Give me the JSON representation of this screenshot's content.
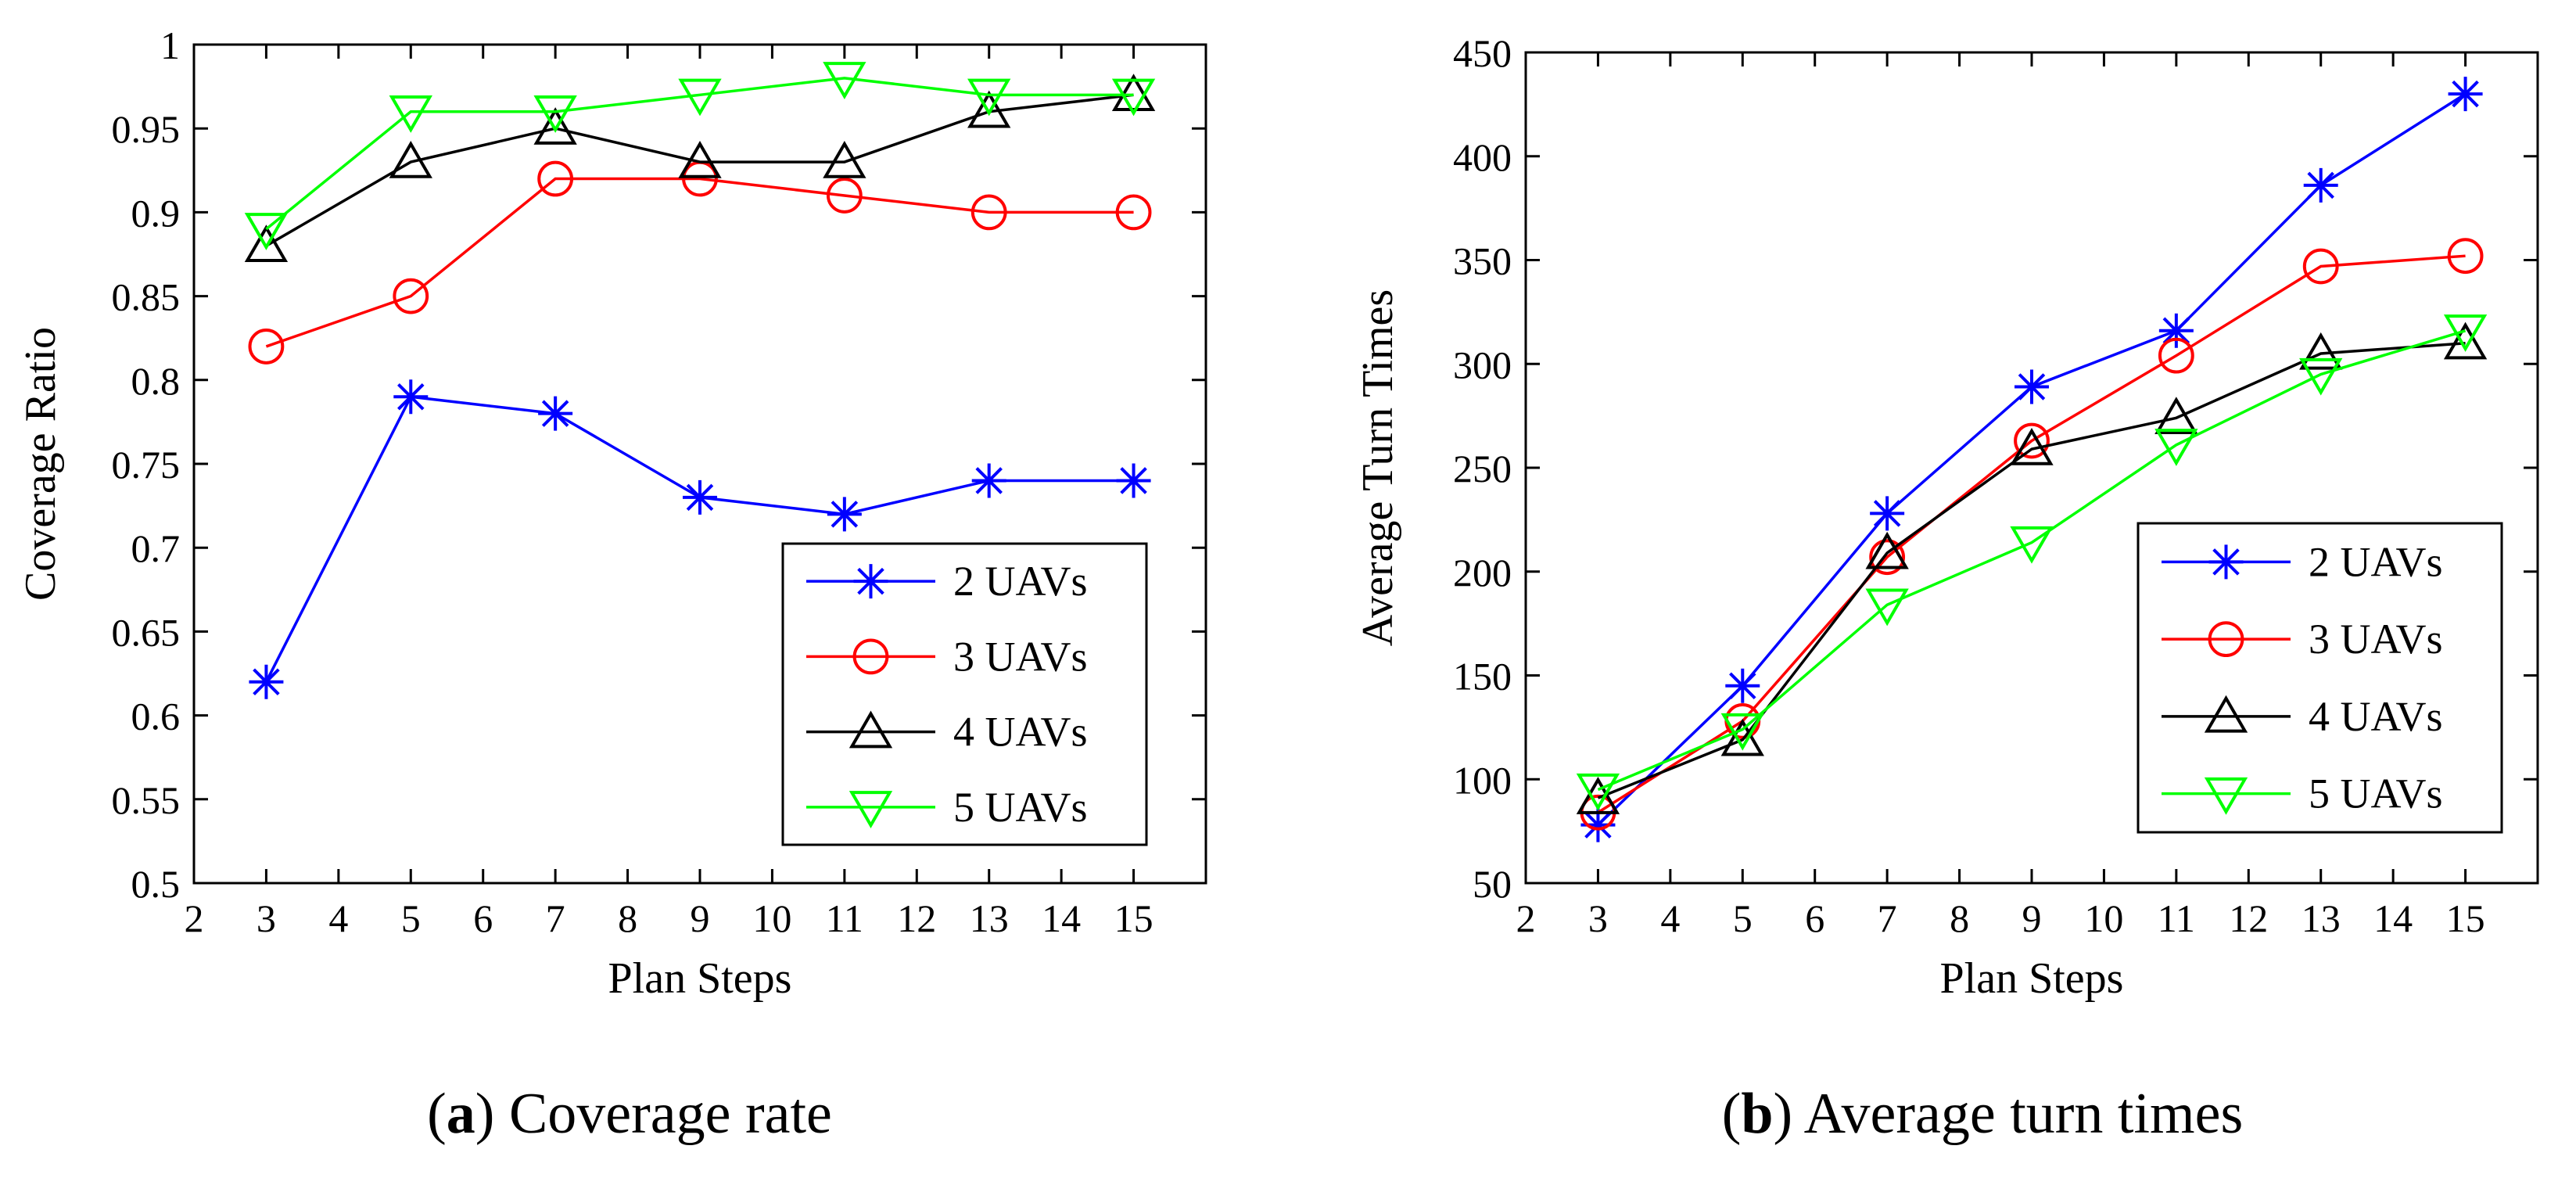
{
  "chart_data": [
    {
      "type": "line",
      "panel_letter": "a",
      "caption": "Coverage rate",
      "xlabel": "Plan Steps",
      "ylabel": "Coverage Ratio",
      "xlim": [
        2,
        16
      ],
      "ylim": [
        0.5,
        1
      ],
      "xticks": [
        2,
        3,
        4,
        5,
        6,
        7,
        8,
        9,
        10,
        11,
        12,
        13,
        14,
        15
      ],
      "yticks": [
        0.5,
        0.55,
        0.6,
        0.65,
        0.7,
        0.75,
        0.8,
        0.85,
        0.9,
        0.95,
        1
      ],
      "ytick_labels": [
        "0.5",
        "0.55",
        "0.6",
        "0.65",
        "0.7",
        "0.75",
        "0.8",
        "0.85",
        "0.9",
        "0.95",
        "1"
      ],
      "legend_position": "bottom-right",
      "x": [
        3,
        5,
        7,
        9,
        11,
        13,
        15
      ],
      "series": [
        {
          "name": "2 UAVs",
          "color": "#0000ff",
          "marker": "star",
          "values": [
            0.62,
            0.79,
            0.78,
            0.73,
            0.72,
            0.74,
            0.74
          ]
        },
        {
          "name": "3 UAVs",
          "color": "#ff0000",
          "marker": "circle",
          "values": [
            0.82,
            0.85,
            0.92,
            0.92,
            0.91,
            0.9,
            0.9
          ]
        },
        {
          "name": "4 UAVs",
          "color": "#000000",
          "marker": "triangle-up",
          "values": [
            0.88,
            0.93,
            0.95,
            0.93,
            0.93,
            0.96,
            0.97
          ]
        },
        {
          "name": "5 UAVs",
          "color": "#00ff00",
          "marker": "triangle-down",
          "values": [
            0.89,
            0.96,
            0.96,
            0.97,
            0.98,
            0.97,
            0.97
          ]
        }
      ]
    },
    {
      "type": "line",
      "panel_letter": "b",
      "caption": "Average turn times",
      "xlabel": "Plan Steps",
      "ylabel": "Average Turn Times",
      "xlim": [
        2,
        16
      ],
      "ylim": [
        50,
        450
      ],
      "xticks": [
        2,
        3,
        4,
        5,
        6,
        7,
        8,
        9,
        10,
        11,
        12,
        13,
        14,
        15
      ],
      "yticks": [
        50,
        100,
        150,
        200,
        250,
        300,
        350,
        400,
        450
      ],
      "ytick_labels": [
        "50",
        "100",
        "150",
        "200",
        "250",
        "300",
        "350",
        "400",
        "450"
      ],
      "legend_position": "bottom-right",
      "x": [
        3,
        5,
        7,
        9,
        11,
        13,
        15
      ],
      "series": [
        {
          "name": "2 UAVs",
          "color": "#0000ff",
          "marker": "star",
          "values": [
            78,
            145,
            228,
            289,
            316,
            386,
            430
          ]
        },
        {
          "name": "3 UAVs",
          "color": "#ff0000",
          "marker": "circle",
          "values": [
            84,
            128,
            207,
            263,
            304,
            347,
            352
          ]
        },
        {
          "name": "4 UAVs",
          "color": "#000000",
          "marker": "triangle-up",
          "values": [
            91,
            119,
            209,
            259,
            274,
            305,
            310
          ]
        },
        {
          "name": "5 UAVs",
          "color": "#00ff00",
          "marker": "triangle-down",
          "values": [
            95,
            124,
            184,
            214,
            261,
            295,
            316
          ]
        }
      ]
    }
  ]
}
